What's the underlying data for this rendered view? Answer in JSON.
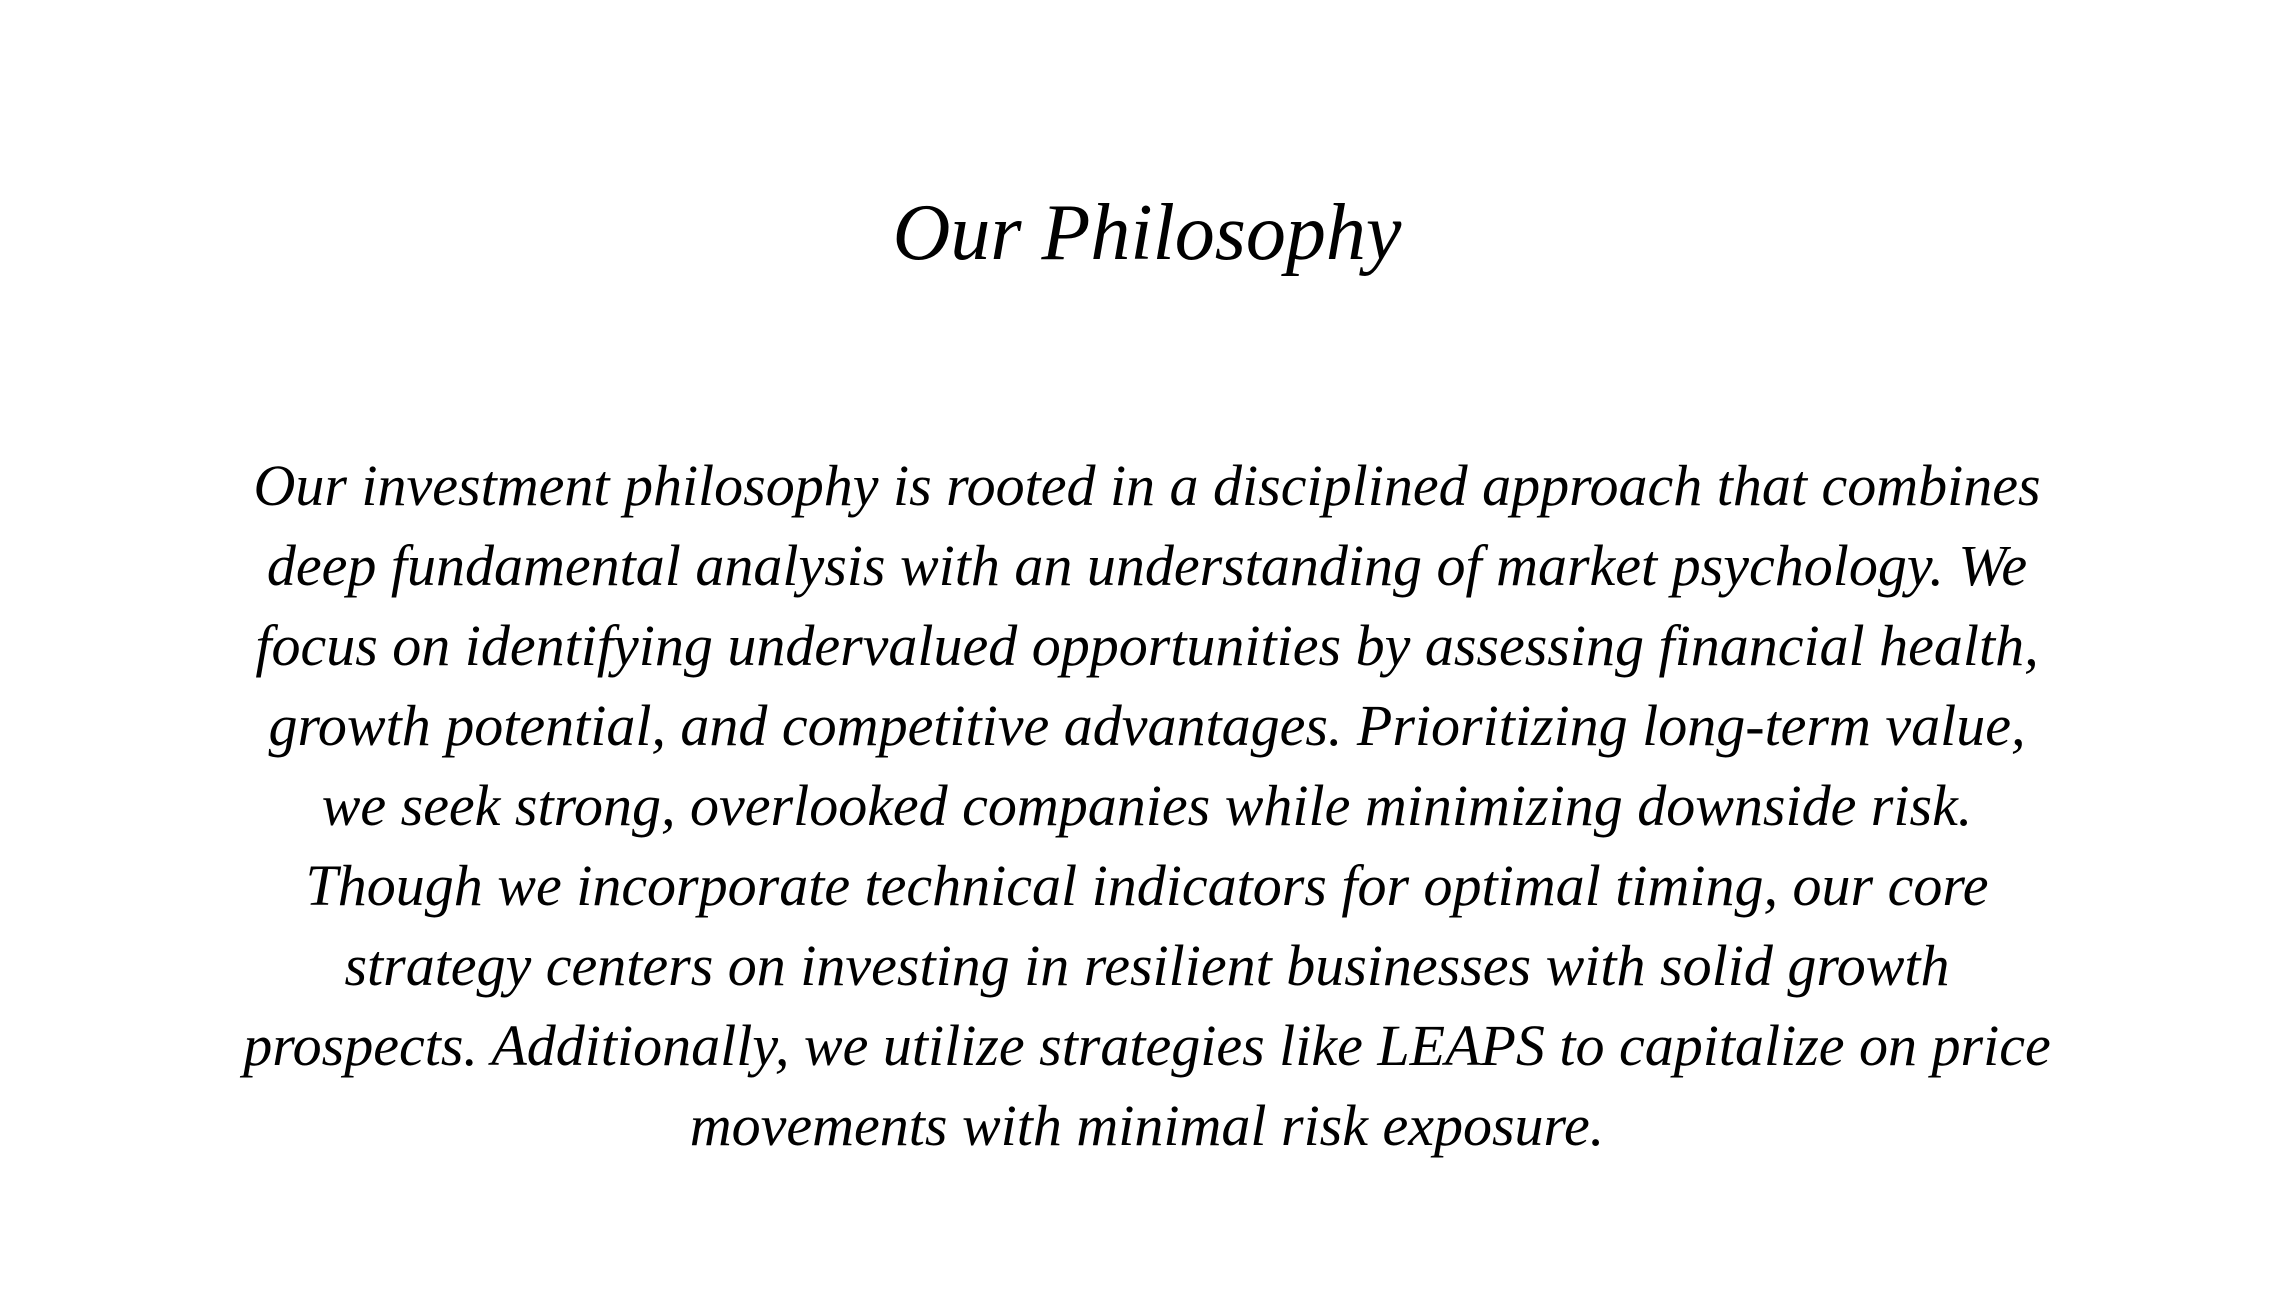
{
  "page": {
    "title": "Our Philosophy",
    "body_lines": [
      "Our investment philosophy is rooted in a disciplined approach that combines",
      "deep fundamental analysis with an understanding of market psychology. We",
      "focus on identifying undervalued opportunities by assessing financial health,",
      "growth potential, and competitive advantages. Prioritizing long-term value,",
      "we seek strong, overlooked companies while minimizing downside risk.",
      "Though we incorporate technical indicators for optimal timing, our core",
      "strategy centers on investing in resilient businesses with solid growth",
      "prospects. Additionally, we utilize strategies like LEAPS to capitalize on price",
      "movements with minimal risk exposure."
    ]
  }
}
